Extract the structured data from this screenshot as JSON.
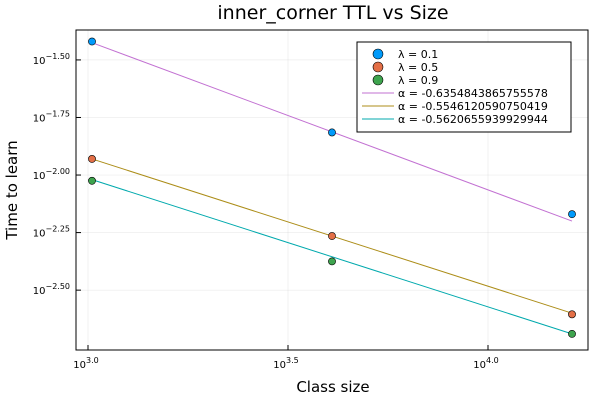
{
  "chart_data": {
    "type": "scatter",
    "title": "inner_corner TTL vs Size",
    "xlabel": "Class size",
    "ylabel": "Time to learn",
    "xscale": "log10",
    "yscale": "log10",
    "x_log_range": [
      2.97,
      4.25
    ],
    "y_log_range": [
      -2.76,
      -1.37
    ],
    "x_ticks": [
      {
        "log": 3.0,
        "base": "10",
        "exp": "3.0"
      },
      {
        "log": 3.5,
        "base": "10",
        "exp": "3.5"
      },
      {
        "log": 4.0,
        "base": "10",
        "exp": "4.0"
      }
    ],
    "y_ticks": [
      {
        "log": -1.5,
        "base": "10",
        "exp": "−1.50"
      },
      {
        "log": -1.75,
        "base": "10",
        "exp": "−1.75"
      },
      {
        "log": -2.0,
        "base": "10",
        "exp": "−2.00"
      },
      {
        "log": -2.25,
        "base": "10",
        "exp": "−2.25"
      },
      {
        "log": -2.5,
        "base": "10",
        "exp": "−2.50"
      }
    ],
    "grid": true,
    "legend_position": "top-right",
    "scatter_series": [
      {
        "name": "λ = 0.1",
        "color": "#009AFA",
        "x_log": [
          3.01,
          3.61,
          4.21
        ],
        "y_log": [
          -1.42,
          -1.815,
          -2.17
        ]
      },
      {
        "name": "λ = 0.5",
        "color": "#E36F47",
        "x_log": [
          3.01,
          3.61,
          4.21
        ],
        "y_log": [
          -1.93,
          -2.265,
          -2.605
        ]
      },
      {
        "name": "λ = 0.9",
        "color": "#3EA44E",
        "x_log": [
          3.01,
          3.61,
          4.21
        ],
        "y_log": [
          -2.025,
          -2.375,
          -2.69
        ]
      }
    ],
    "fit_series": [
      {
        "name": "α = -0.6354843865755578",
        "color": "#C271D2",
        "x_log": [
          3.01,
          4.21
        ],
        "y_log": [
          -1.425,
          -2.2
        ]
      },
      {
        "name": "α = -0.5546120590750419",
        "color": "#AC8D18",
        "x_log": [
          3.01,
          4.21
        ],
        "y_log": [
          -1.93,
          -2.6
        ]
      },
      {
        "name": "α = -0.5620655939929944",
        "color": "#00A9AD",
        "x_log": [
          3.01,
          4.21
        ],
        "y_log": [
          -2.02,
          -2.69
        ]
      }
    ]
  }
}
